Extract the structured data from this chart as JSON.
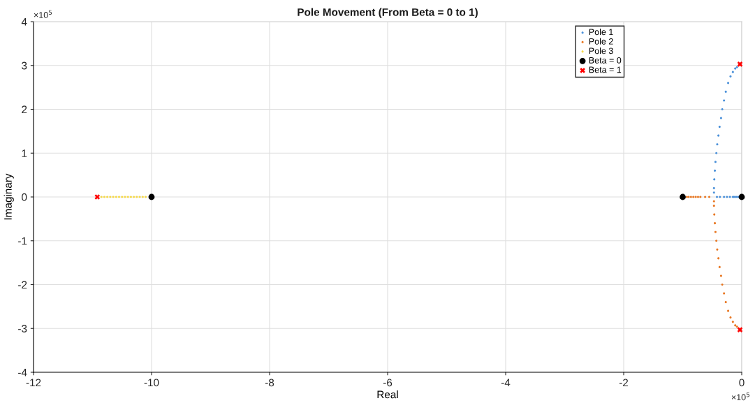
{
  "chart_data": {
    "type": "scatter",
    "title": "Pole Movement (From Beta = 0 to 1)",
    "xlabel": "Real",
    "ylabel": "Imaginary",
    "series": [
      {
        "name": "Pole 1",
        "color": "#4a90d9",
        "marker": "circle",
        "x": [
          -0.05,
          -0.08,
          -0.1,
          -0.13,
          -0.15,
          -0.2,
          -0.25,
          -0.3,
          -0.37,
          -0.42,
          -0.47,
          -0.47,
          -0.465,
          -0.455,
          -0.445,
          -0.43,
          -0.415,
          -0.395,
          -0.375,
          -0.35,
          -0.33,
          -0.3,
          -0.27,
          -0.23,
          -0.19,
          -0.15,
          -0.11,
          -0.08
        ],
        "values": [
          0,
          0,
          0,
          0,
          0,
          0,
          0,
          0,
          0,
          0,
          0.1,
          0.2,
          0.4,
          0.6,
          0.8,
          1.0,
          1.2,
          1.4,
          1.6,
          1.8,
          2.0,
          2.2,
          2.4,
          2.6,
          2.75,
          2.85,
          2.93,
          2.96
        ]
      },
      {
        "name": "Pole 2",
        "color": "#e87722",
        "marker": "circle",
        "x": [
          -0.93,
          -0.9,
          -0.86,
          -0.82,
          -0.78,
          -0.74,
          -0.7,
          -0.62,
          -0.55,
          -0.47,
          -0.47,
          -0.465,
          -0.455,
          -0.445,
          -0.43,
          -0.415,
          -0.395,
          -0.375,
          -0.35,
          -0.33,
          -0.3,
          -0.27,
          -0.23,
          -0.19,
          -0.15,
          -0.11,
          -0.08
        ],
        "values": [
          0,
          0,
          0,
          0,
          0,
          0,
          0,
          0,
          0,
          -0.1,
          -0.2,
          -0.4,
          -0.6,
          -0.8,
          -1.0,
          -1.2,
          -1.4,
          -1.6,
          -1.8,
          -2.0,
          -2.2,
          -2.4,
          -2.6,
          -2.75,
          -2.85,
          -2.93,
          -2.96
        ]
      },
      {
        "name": "Pole 3",
        "color": "#f5d94a",
        "marker": "circle",
        "x": [
          -10.1,
          -10.15,
          -10.2,
          -10.25,
          -10.3,
          -10.35,
          -10.4,
          -10.45,
          -10.5,
          -10.55,
          -10.6,
          -10.65,
          -10.7,
          -10.75,
          -10.8,
          -10.85
        ],
        "values": [
          0,
          0,
          0,
          0,
          0,
          0,
          0,
          0,
          0,
          0,
          0,
          0,
          0,
          0,
          0,
          0
        ]
      },
      {
        "name": "Beta = 0",
        "color": "#000000",
        "marker": "circle",
        "x": [
          -10,
          -1,
          0
        ],
        "values": [
          0,
          0,
          0
        ]
      },
      {
        "name": "Beta = 1",
        "color": "#ff0000",
        "marker": "cross",
        "x": [
          -10.92,
          -0.03,
          -0.03
        ],
        "values": [
          0,
          3.03,
          -3.03
        ]
      }
    ],
    "xlim": [
      -12,
      0
    ],
    "xticks": [
      -12,
      -10,
      -8,
      -6,
      -4,
      -2,
      0
    ],
    "ylim": [
      -4,
      4
    ],
    "yticks": [
      -4,
      -3,
      -2,
      -1,
      0,
      1,
      2,
      3,
      4
    ],
    "annotations": [
      "×10$^{5}$",
      "×10$^{5}$"
    ],
    "grid": true,
    "legend": "top right"
  }
}
